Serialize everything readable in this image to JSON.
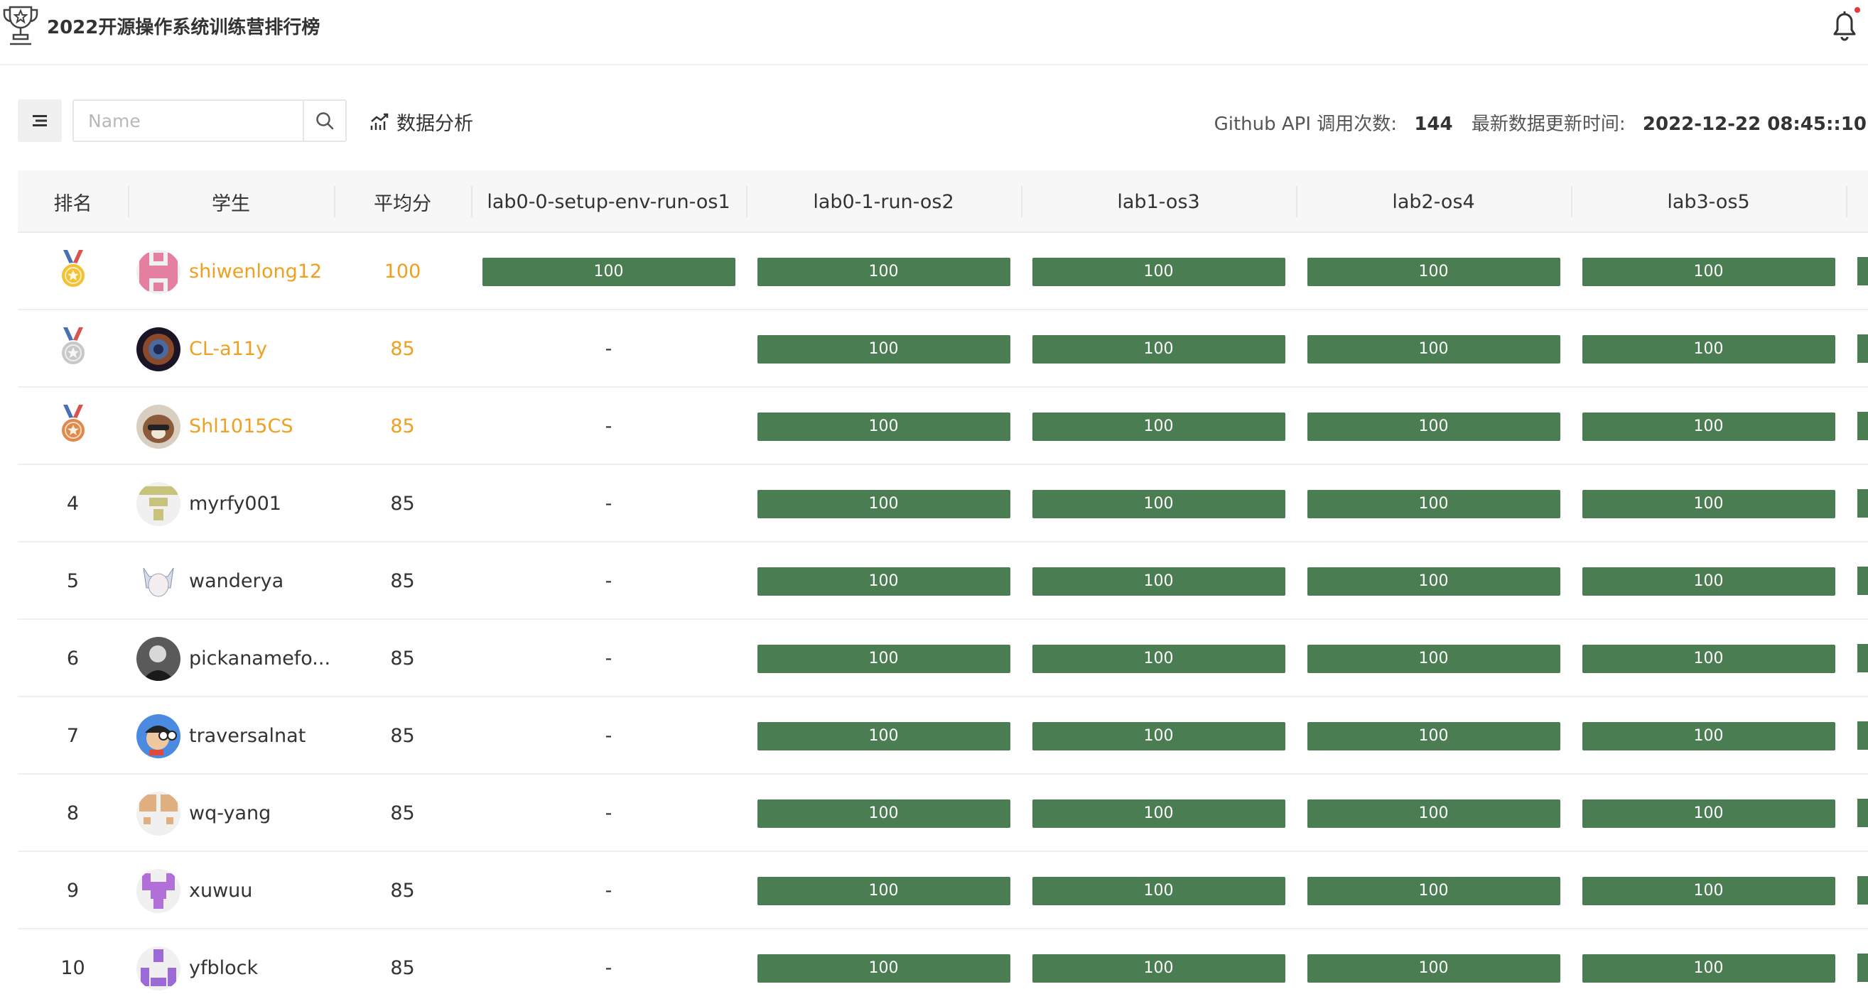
{
  "header": {
    "title": "2022开源操作系统训练营排行榜"
  },
  "toolbar": {
    "search_placeholder": "Name",
    "analysis_label": "数据分析",
    "api_calls_label": "Github API 调用次数:",
    "api_calls_value": "144",
    "update_label": "最新数据更新时间:",
    "update_value": "2022-12-22 08:45::10"
  },
  "table": {
    "columns": [
      "排名",
      "学生",
      "平均分",
      "lab0-0-setup-env-run-os1",
      "lab0-1-run-os2",
      "lab1-os3",
      "lab2-os4",
      "lab3-os5"
    ],
    "rows": [
      {
        "rank": "1",
        "medal": "gold",
        "name": "shiwenlong12",
        "avg": "100",
        "avatar": "identicon-pink",
        "scores": [
          "100",
          "100",
          "100",
          "100",
          "100"
        ]
      },
      {
        "rank": "2",
        "medal": "silver",
        "name": "CL-a11y",
        "avg": "85",
        "avatar": "photo-nebula",
        "scores": [
          "-",
          "100",
          "100",
          "100",
          "100"
        ]
      },
      {
        "rank": "3",
        "medal": "bronze",
        "name": "Shl1015CS",
        "avg": "85",
        "avatar": "photo-dog",
        "scores": [
          "-",
          "100",
          "100",
          "100",
          "100"
        ]
      },
      {
        "rank": "4",
        "medal": "",
        "name": "myrfy001",
        "avg": "85",
        "avatar": "identicon-olive",
        "scores": [
          "-",
          "100",
          "100",
          "100",
          "100"
        ]
      },
      {
        "rank": "5",
        "medal": "",
        "name": "wanderya",
        "avg": "85",
        "avatar": "photo-anime",
        "scores": [
          "-",
          "100",
          "100",
          "100",
          "100"
        ]
      },
      {
        "rank": "6",
        "medal": "",
        "name": "pickanamefo...",
        "avg": "85",
        "avatar": "photo-portrait",
        "scores": [
          "-",
          "100",
          "100",
          "100",
          "100"
        ]
      },
      {
        "rank": "7",
        "medal": "",
        "name": "traversalnat",
        "avg": "85",
        "avatar": "photo-cartoon",
        "scores": [
          "-",
          "100",
          "100",
          "100",
          "100"
        ]
      },
      {
        "rank": "8",
        "medal": "",
        "name": "wq-yang",
        "avg": "85",
        "avatar": "identicon-tan",
        "scores": [
          "-",
          "100",
          "100",
          "100",
          "100"
        ]
      },
      {
        "rank": "9",
        "medal": "",
        "name": "xuwuu",
        "avg": "85",
        "avatar": "identicon-purple",
        "scores": [
          "-",
          "100",
          "100",
          "100",
          "100"
        ]
      },
      {
        "rank": "10",
        "medal": "",
        "name": "yfblock",
        "avg": "85",
        "avatar": "identicon-violet",
        "scores": [
          "-",
          "100",
          "100",
          "100",
          "100"
        ]
      }
    ]
  },
  "colors": {
    "bar": "#4a7d52",
    "top3_text": "#f0a020",
    "gold": "#f2c230",
    "silver": "#c8c8c8",
    "bronze": "#e08a4a",
    "ribbon_red": "#d9534f",
    "ribbon_blue": "#4a6fb5"
  }
}
